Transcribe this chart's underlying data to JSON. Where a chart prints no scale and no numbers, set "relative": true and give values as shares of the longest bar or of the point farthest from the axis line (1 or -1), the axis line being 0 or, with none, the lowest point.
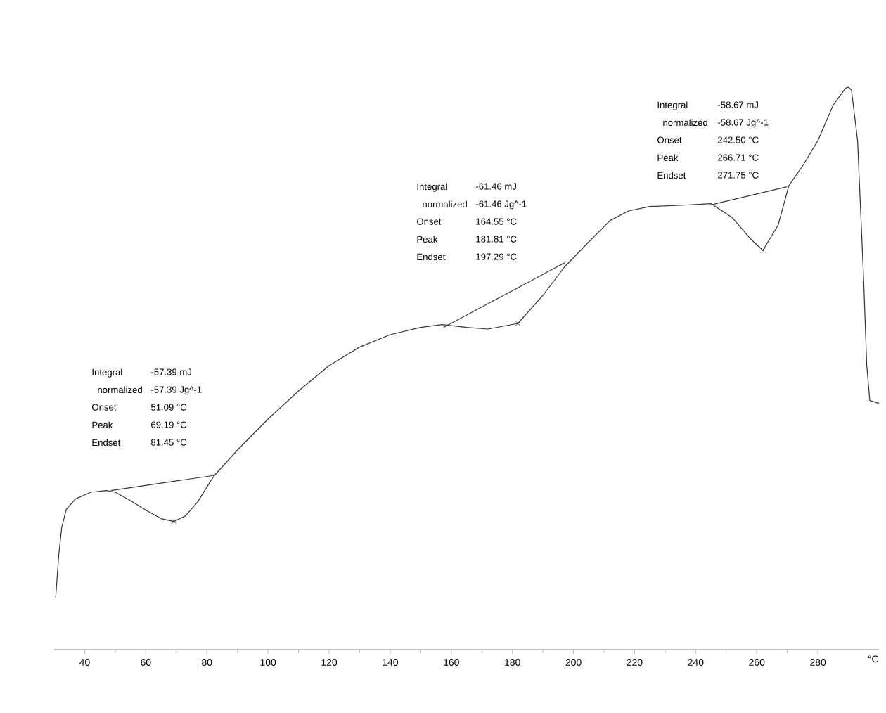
{
  "chart_data": {
    "type": "line",
    "relative": true,
    "xlabel": "°C",
    "xlim": [
      30,
      300
    ],
    "xticks": [
      40,
      60,
      80,
      100,
      120,
      140,
      160,
      180,
      200,
      220,
      240,
      260,
      280
    ],
    "series": [
      {
        "color": "#333333",
        "x": [
          30.5,
          31,
          31.5,
          32.5,
          34,
          37,
          42,
          47,
          50,
          55,
          60,
          65,
          69.2,
          73,
          77,
          81,
          82.5,
          90,
          100,
          110,
          120,
          130,
          140,
          150,
          157,
          165,
          172,
          181.8,
          190,
          197,
          205,
          212,
          218,
          225,
          235,
          245,
          252,
          258,
          262,
          267,
          270.5,
          275,
          280,
          285,
          289,
          290,
          291,
          293,
          295,
          296,
          297,
          300
        ],
        "values": [
          0.093,
          0.13,
          0.168,
          0.218,
          0.25,
          0.268,
          0.28,
          0.283,
          0.28,
          0.265,
          0.248,
          0.233,
          0.228,
          0.238,
          0.263,
          0.298,
          0.31,
          0.355,
          0.41,
          0.46,
          0.505,
          0.538,
          0.56,
          0.573,
          0.578,
          0.573,
          0.57,
          0.58,
          0.63,
          0.68,
          0.725,
          0.763,
          0.78,
          0.788,
          0.79,
          0.793,
          0.768,
          0.73,
          0.71,
          0.755,
          0.825,
          0.86,
          0.905,
          0.968,
          0.998,
          1,
          0.995,
          0.905,
          0.655,
          0.505,
          0.443,
          0.438
        ]
      },
      {
        "type": "line",
        "color": "#333333",
        "x": [
          48.6,
          82.5
        ],
        "values": [
          0.283,
          0.31
        ]
      },
      {
        "type": "line",
        "color": "#333333",
        "x": [
          157.5,
          197.2
        ],
        "values": [
          0.573,
          0.688
        ]
      },
      {
        "type": "line",
        "color": "#333333",
        "x": [
          244.4,
          269.9
        ],
        "values": [
          0.79,
          0.823
        ]
      },
      {
        "type": "scatter",
        "marker": "cross",
        "color": "#333333",
        "x": [
          69.19,
          181.81,
          262
        ],
        "values": [
          0.228,
          0.58,
          0.71
        ]
      }
    ],
    "annotations": [
      "Integral",
      "-57.39 mJ",
      "normalized",
      "-57.39 Jg^-1",
      "Onset",
      "51.09 °C",
      "Peak",
      "69.19 °C",
      "Endset",
      "81.45 °C",
      "Integral",
      "-61.46 mJ",
      "normalized",
      "-61.46 Jg^-1",
      "Onset",
      "164.55 °C",
      "Peak",
      "181.81 °C",
      "Endset",
      "197.29 °C",
      "Integral",
      "-58.67 mJ",
      "normalized",
      "-58.67 Jg^-1",
      "Onset",
      "242.50 °C",
      "Peak",
      "266.71 °C",
      "Endset",
      "271.75 °C"
    ]
  }
}
